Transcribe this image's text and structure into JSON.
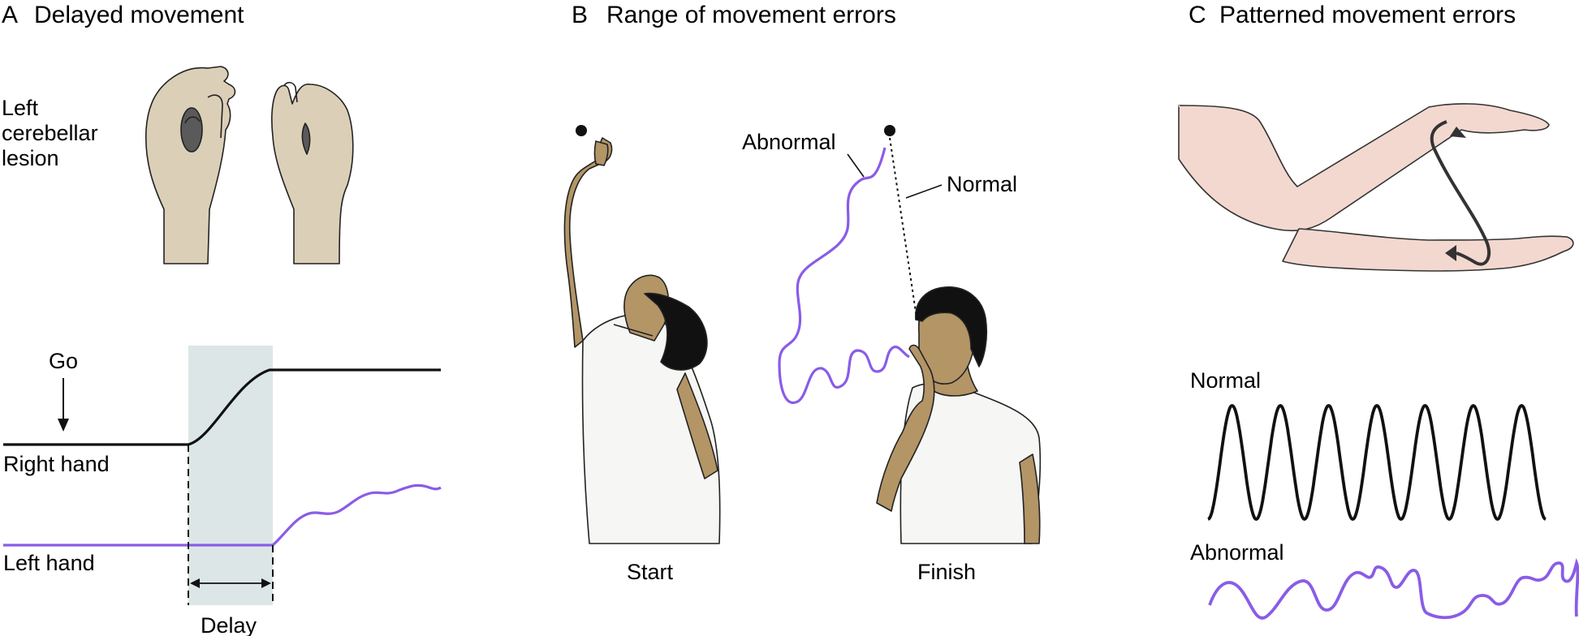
{
  "panels": {
    "a": {
      "letter": "A",
      "title": "Delayed movement",
      "lesion_label": [
        "Left",
        "cerebellar",
        "lesion"
      ],
      "go_label": "Go",
      "right_hand_label": "Right hand",
      "left_hand_label": "Left hand",
      "delay_label": "Delay"
    },
    "b": {
      "letter": "B",
      "title": "Range of movement errors",
      "abnormal_label": "Abnormal",
      "normal_label": "Normal",
      "start_label": "Start",
      "finish_label": "Finish"
    },
    "c": {
      "letter": "C",
      "title": "Patterned movement errors",
      "normal_label": "Normal",
      "abnormal_label": "Abnormal"
    }
  },
  "colors": {
    "normal_trace": "#111111",
    "abnormal_trace": "#8a5ce6",
    "delay_band": "#dce6e6",
    "skin": "#dccfb8",
    "skin_dark": "#b39566",
    "arm_skin": "#f3d8cf",
    "hair": "#111111",
    "shirt": "#f6f6f4"
  },
  "icons": [
    "hands-holding-objects-illustration",
    "man-pointing-up-illustration",
    "man-touching-nose-illustration",
    "forearm-alternating-illustration"
  ]
}
